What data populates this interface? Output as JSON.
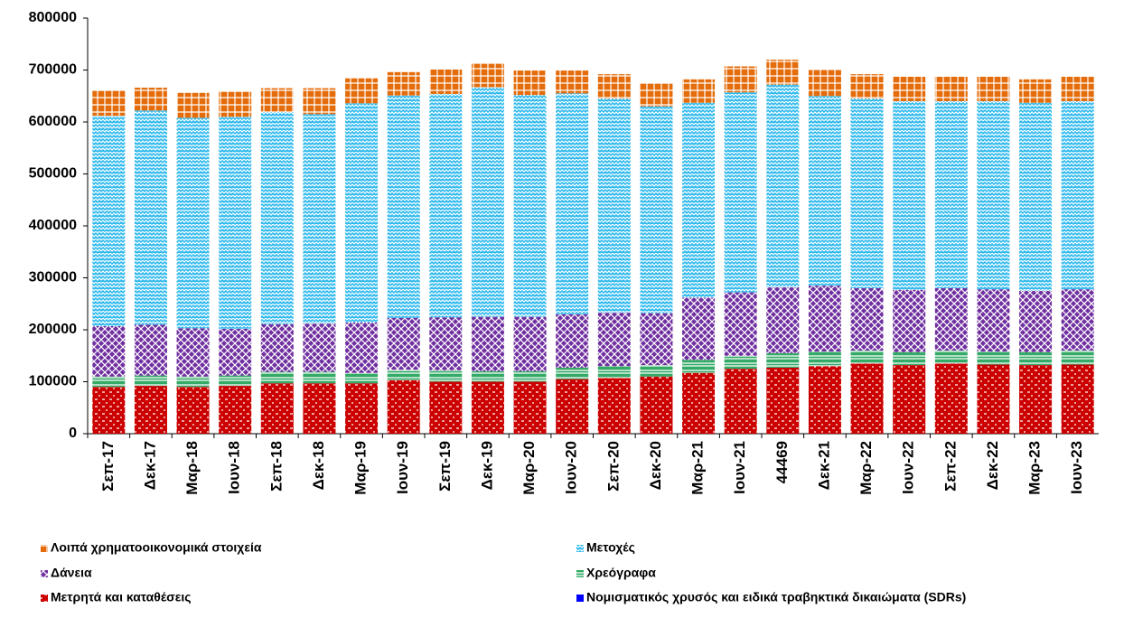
{
  "chart_data": {
    "type": "stacked_bar",
    "categories": [
      "Σεπ-17",
      "Δεκ-17",
      "Μαρ-18",
      "Ιουν-18",
      "Σεπ-18",
      "Δεκ-18",
      "Μαρ-19",
      "Ιουν-19",
      "Σεπ-19",
      "Δεκ-19",
      "Μαρ-20",
      "Ιουν-20",
      "Σεπ-20",
      "Δεκ-20",
      "Μαρ-21",
      "Ιουν-21",
      "44469",
      "Δεκ-21",
      "Μαρ-22",
      "Ιουν-22",
      "Σεπ-22",
      "Δεκ-22",
      "Μαρ-23",
      "Ιουν-23"
    ],
    "series": [
      {
        "name": "Νομισματικός χρυσός και ειδικά τραβηκτικά δικαιώματα (SDRs)",
        "color": "#0000ff",
        "values": [
          0,
          0,
          0,
          0,
          0,
          0,
          0,
          0,
          0,
          0,
          0,
          0,
          0,
          0,
          0,
          0,
          0,
          0,
          0,
          0,
          0,
          0,
          0,
          0
        ]
      },
      {
        "name": "Μετρητά και καταθέσεις",
        "color": "#cc0000",
        "values": [
          90000,
          92000,
          90000,
          92000,
          97000,
          97000,
          97000,
          103000,
          100000,
          100000,
          100000,
          105000,
          107000,
          110000,
          117000,
          125000,
          127000,
          130000,
          135000,
          132000,
          135000,
          133000,
          132000,
          133000
        ]
      },
      {
        "name": "Χρεόγραφα",
        "color": "#33aa66",
        "values": [
          20000,
          20000,
          20000,
          20000,
          22000,
          22000,
          20000,
          20000,
          22000,
          20000,
          20000,
          22000,
          23000,
          22000,
          25000,
          25000,
          28000,
          28000,
          25000,
          25000,
          25000,
          25000,
          25000,
          27000
        ]
      },
      {
        "name": "Δάνεια",
        "color": "#7030a0",
        "values": [
          97000,
          98000,
          93000,
          90000,
          92000,
          93000,
          97000,
          100000,
          102000,
          105000,
          105000,
          103000,
          103000,
          100000,
          120000,
          122000,
          127000,
          127000,
          120000,
          120000,
          120000,
          120000,
          118000,
          118000
        ]
      },
      {
        "name": "Μετοχές",
        "color": "#33bbee",
        "values": [
          405000,
          412000,
          405000,
          408000,
          408000,
          403000,
          422000,
          428000,
          430000,
          442000,
          427000,
          425000,
          412000,
          398000,
          375000,
          385000,
          390000,
          365000,
          365000,
          363000,
          360000,
          362000,
          362000,
          362000
        ]
      },
      {
        "name": "Λοιπά χρηματοοικονομικά στοιχεία",
        "color": "#e46c0a",
        "values": [
          48000,
          44000,
          48000,
          48000,
          46000,
          50000,
          48000,
          45000,
          47000,
          45000,
          47000,
          44000,
          47000,
          44000,
          45000,
          50000,
          48000,
          50000,
          47000,
          47000,
          47000,
          47000,
          45000,
          47000
        ]
      }
    ],
    "ylim": [
      0,
      800000
    ],
    "yticks": [
      0,
      100000,
      200000,
      300000,
      400000,
      500000,
      600000,
      700000,
      800000
    ],
    "grid": false
  }
}
